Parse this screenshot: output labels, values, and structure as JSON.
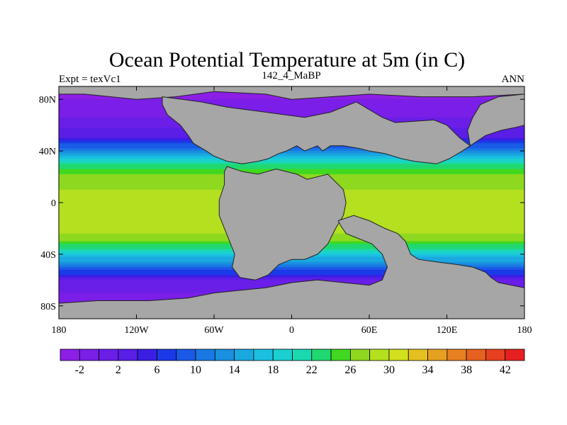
{
  "chart_data": {
    "type": "heatmap",
    "title": "Ocean Potential Temperature at 5m (in C)",
    "subtitle": "142_4_MaBP",
    "left_label": "Expt = texVc1",
    "right_label": "ANN",
    "xlim": [
      -180,
      180
    ],
    "ylim": [
      -90,
      90
    ],
    "x_ticks": [
      {
        "value": -180,
        "label": "180"
      },
      {
        "value": -120,
        "label": "120W"
      },
      {
        "value": -60,
        "label": "60W"
      },
      {
        "value": 0,
        "label": "0"
      },
      {
        "value": 60,
        "label": "60E"
      },
      {
        "value": 120,
        "label": "120E"
      },
      {
        "value": 180,
        "label": "180"
      }
    ],
    "y_ticks": [
      {
        "value": 80,
        "label": "80N"
      },
      {
        "value": 40,
        "label": "40N"
      },
      {
        "value": 0,
        "label": "0"
      },
      {
        "value": -40,
        "label": "40S"
      },
      {
        "value": -80,
        "label": "80S"
      }
    ],
    "colorbar": {
      "levels": [
        -4,
        -2,
        0,
        2,
        4,
        6,
        8,
        10,
        12,
        14,
        16,
        18,
        20,
        22,
        24,
        26,
        28,
        30,
        32,
        34,
        36,
        38,
        40,
        42,
        44
      ],
      "colors": [
        "#8c1ee6",
        "#7a1ee8",
        "#6a1ee8",
        "#5a1ee6",
        "#3a1ee4",
        "#1a3ae8",
        "#1a5ae6",
        "#1a78e4",
        "#1a90e0",
        "#1aa8e0",
        "#1ac0e0",
        "#1ad0d0",
        "#1ad8b0",
        "#20d870",
        "#40d820",
        "#8ed820",
        "#b4e020",
        "#d2e020",
        "#e6c020",
        "#e6a020",
        "#e68020",
        "#e66020",
        "#e64020",
        "#e62020"
      ],
      "labels": [
        {
          "value": -2,
          "label": "-2"
        },
        {
          "value": 2,
          "label": "2"
        },
        {
          "value": 6,
          "label": "6"
        },
        {
          "value": 10,
          "label": "10"
        },
        {
          "value": 14,
          "label": "14"
        },
        {
          "value": 18,
          "label": "18"
        },
        {
          "value": 22,
          "label": "22"
        },
        {
          "value": 26,
          "label": "26"
        },
        {
          "value": 30,
          "label": "30"
        },
        {
          "value": 34,
          "label": "34"
        },
        {
          "value": 38,
          "label": "38"
        },
        {
          "value": 42,
          "label": "42"
        }
      ]
    },
    "land_color": "#a6a6a6",
    "temperature_profile": [
      {
        "lat": 90,
        "temp": -3
      },
      {
        "lat": 70,
        "temp": -1
      },
      {
        "lat": 50,
        "temp": 4
      },
      {
        "lat": 40,
        "temp": 12
      },
      {
        "lat": 30,
        "temp": 22
      },
      {
        "lat": 20,
        "temp": 27
      },
      {
        "lat": 10,
        "temp": 28
      },
      {
        "lat": 0,
        "temp": 28
      },
      {
        "lat": -10,
        "temp": 29
      },
      {
        "lat": -20,
        "temp": 29
      },
      {
        "lat": -30,
        "temp": 26
      },
      {
        "lat": -40,
        "temp": 18
      },
      {
        "lat": -50,
        "temp": 10
      },
      {
        "lat": -60,
        "temp": 2
      },
      {
        "lat": -75,
        "temp": -1
      },
      {
        "lat": -90,
        "temp": -3
      }
    ],
    "land_masses": [
      {
        "name": "north-polar-land",
        "points": [
          [
            -160,
            84
          ],
          [
            -120,
            80
          ],
          [
            -90,
            82
          ],
          [
            -60,
            86
          ],
          [
            -20,
            84
          ],
          [
            0,
            80
          ],
          [
            30,
            82
          ],
          [
            60,
            84
          ],
          [
            100,
            82
          ],
          [
            140,
            82
          ],
          [
            180,
            84
          ],
          [
            180,
            90
          ],
          [
            -180,
            90
          ],
          [
            -180,
            84
          ]
        ]
      },
      {
        "name": "laurasia",
        "points": [
          [
            -100,
            82
          ],
          [
            -70,
            78
          ],
          [
            -50,
            74
          ],
          [
            -20,
            70
          ],
          [
            10,
            66
          ],
          [
            30,
            70
          ],
          [
            50,
            78
          ],
          [
            60,
            72
          ],
          [
            70,
            66
          ],
          [
            80,
            62
          ],
          [
            110,
            64
          ],
          [
            120,
            60
          ],
          [
            130,
            50
          ],
          [
            138,
            44
          ],
          [
            132,
            40
          ],
          [
            122,
            34
          ],
          [
            112,
            30
          ],
          [
            95,
            32
          ],
          [
            85,
            34
          ],
          [
            72,
            38
          ],
          [
            60,
            40
          ],
          [
            52,
            42
          ],
          [
            40,
            44
          ],
          [
            30,
            44
          ],
          [
            24,
            40
          ],
          [
            20,
            44
          ],
          [
            10,
            40
          ],
          [
            4,
            44
          ],
          [
            -4,
            40
          ],
          [
            -10,
            38
          ],
          [
            -18,
            34
          ],
          [
            -26,
            32
          ],
          [
            -38,
            30
          ],
          [
            -50,
            32
          ],
          [
            -60,
            36
          ],
          [
            -66,
            40
          ],
          [
            -76,
            46
          ],
          [
            -80,
            52
          ],
          [
            -86,
            60
          ],
          [
            -96,
            68
          ],
          [
            -100,
            76
          ]
        ]
      },
      {
        "name": "gondwana",
        "points": [
          [
            -50,
            28
          ],
          [
            -38,
            24
          ],
          [
            -26,
            22
          ],
          [
            -12,
            26
          ],
          [
            4,
            22
          ],
          [
            12,
            18
          ],
          [
            28,
            22
          ],
          [
            40,
            10
          ],
          [
            42,
            0
          ],
          [
            40,
            -10
          ],
          [
            34,
            -20
          ],
          [
            28,
            -32
          ],
          [
            20,
            -40
          ],
          [
            10,
            -44
          ],
          [
            0,
            -44
          ],
          [
            -10,
            -48
          ],
          [
            -18,
            -56
          ],
          [
            -28,
            -60
          ],
          [
            -40,
            -58
          ],
          [
            -46,
            -50
          ],
          [
            -44,
            -40
          ],
          [
            -48,
            -30
          ],
          [
            -52,
            -20
          ],
          [
            -56,
            -10
          ],
          [
            -56,
            2
          ],
          [
            -52,
            14
          ],
          [
            -52,
            24
          ]
        ]
      },
      {
        "name": "india-australia",
        "points": [
          [
            36,
            -14
          ],
          [
            48,
            -10
          ],
          [
            60,
            -14
          ],
          [
            72,
            -20
          ],
          [
            82,
            -24
          ],
          [
            88,
            -30
          ],
          [
            92,
            -40
          ],
          [
            98,
            -44
          ],
          [
            112,
            -46
          ],
          [
            128,
            -48
          ],
          [
            140,
            -50
          ],
          [
            150,
            -54
          ],
          [
            154,
            -58
          ],
          [
            160,
            -62
          ],
          [
            180,
            -66
          ],
          [
            180,
            -90
          ],
          [
            -180,
            -90
          ],
          [
            -180,
            -78
          ],
          [
            -150,
            -76
          ],
          [
            -110,
            -76
          ],
          [
            -80,
            -74
          ],
          [
            -60,
            -70
          ],
          [
            -40,
            -68
          ],
          [
            -20,
            -66
          ],
          [
            0,
            -62
          ],
          [
            20,
            -60
          ],
          [
            40,
            -62
          ],
          [
            60,
            -64
          ],
          [
            70,
            -60
          ],
          [
            74,
            -50
          ],
          [
            70,
            -40
          ],
          [
            62,
            -32
          ],
          [
            52,
            -28
          ],
          [
            42,
            -24
          ],
          [
            38,
            -18
          ]
        ]
      },
      {
        "name": "asia-arm",
        "points": [
          [
            138,
            44
          ],
          [
            150,
            52
          ],
          [
            162,
            56
          ],
          [
            172,
            58
          ],
          [
            180,
            60
          ],
          [
            180,
            84
          ],
          [
            160,
            82
          ],
          [
            146,
            76
          ],
          [
            140,
            66
          ],
          [
            136,
            56
          ]
        ]
      }
    ]
  }
}
